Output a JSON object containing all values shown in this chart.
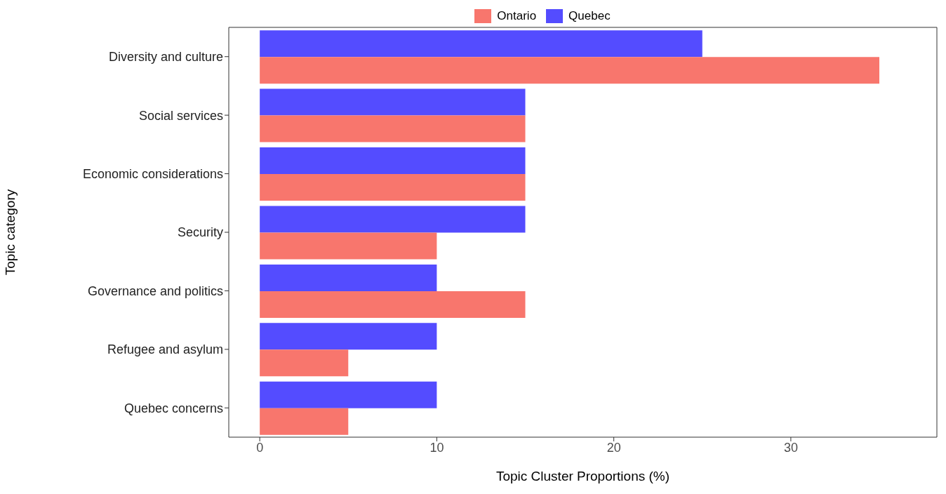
{
  "chart_data": {
    "type": "bar",
    "orientation": "horizontal",
    "xlabel": "Topic Cluster Proportions (%)",
    "ylabel": "Topic category",
    "categories": [
      "Diversity and culture",
      "Social services",
      "Economic considerations",
      "Security",
      "Governance and politics",
      "Refugee and asylum",
      "Quebec concerns"
    ],
    "series": [
      {
        "name": "Ontario",
        "color": "#f8766d",
        "values": [
          35,
          15,
          15,
          10,
          15,
          5,
          5
        ]
      },
      {
        "name": "Quebec",
        "color": "#544cff",
        "values": [
          25,
          15,
          15,
          15,
          10,
          10,
          10
        ]
      }
    ],
    "xlim": [
      -1.75,
      38.25
    ],
    "xticks": [
      0,
      10,
      20,
      30
    ],
    "grid": false,
    "legend": "top"
  }
}
